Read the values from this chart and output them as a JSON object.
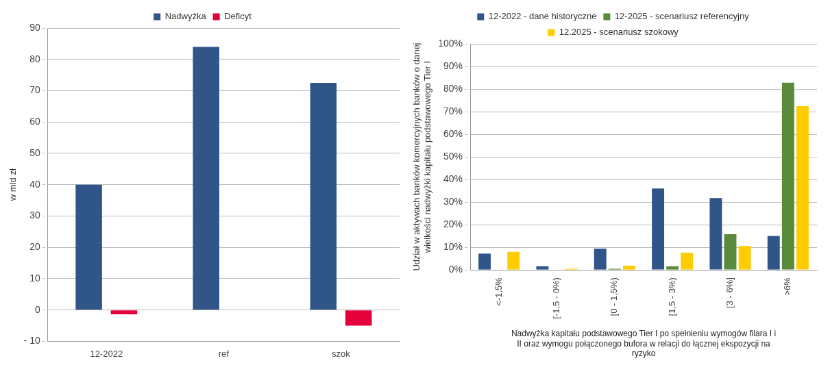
{
  "chart_data": [
    {
      "type": "bar",
      "ylabel": "w mld zł",
      "categories": [
        "12-2022",
        "ref",
        "szok"
      ],
      "series": [
        {
          "name": "Nadwyżka",
          "color": "#2f5589",
          "values": [
            40,
            84,
            72.5
          ]
        },
        {
          "name": "Deficyt",
          "color": "#e4003a",
          "values": [
            -1.4,
            null,
            -5
          ]
        }
      ],
      "ylim": [
        -10,
        90
      ],
      "yticks": [
        {
          "value": -10,
          "label": "- 10"
        },
        0,
        10,
        20,
        30,
        40,
        50,
        60,
        70,
        80,
        90
      ],
      "grid": "y",
      "legend": "top"
    },
    {
      "type": "bar",
      "ylabel": "Udział w aktywach banków komercyjnych banków o danej wielkości nadwyżki kapitału podstawowego Tier I",
      "xlabel": "Nadwyżka kapitału podstawowego Tier I po spełnieniu wymogów filara I i II oraz wymogu połączonego bufora w relacji do łącznej ekspozycji na ryzyko",
      "categories": [
        "<-1,5%",
        "[-1,5 - 0%)",
        "[0 - 1,5%)",
        "[1,5 - 3%)",
        "[3 - 6%]",
        ">6%"
      ],
      "series": [
        {
          "name": "12-2022 - dane historyczne",
          "color": "#2f5589",
          "values": [
            7.2,
            1.6,
            9.4,
            36,
            31.8,
            15
          ]
        },
        {
          "name": "12-2025 - scenariusz referencyjny",
          "color": "#5a8a3c",
          "values": [
            0,
            0,
            0.5,
            1.6,
            15.8,
            82.8
          ]
        },
        {
          "name": "12.2025 - scenariusz szokowy",
          "color": "#ffcc00",
          "values": [
            8,
            0.5,
            1.9,
            7.6,
            10.6,
            72.4
          ]
        }
      ],
      "ylim": [
        0,
        100
      ],
      "yticks": [
        {
          "value": 0,
          "label": "0%"
        },
        {
          "value": 10,
          "label": "10%"
        },
        {
          "value": 20,
          "label": "20%"
        },
        {
          "value": 30,
          "label": "30%"
        },
        {
          "value": 40,
          "label": "40%"
        },
        {
          "value": 50,
          "label": "50%"
        },
        {
          "value": 60,
          "label": "60%"
        },
        {
          "value": 70,
          "label": "70%"
        },
        {
          "value": 80,
          "label": "80%"
        },
        {
          "value": 90,
          "label": "90%"
        },
        {
          "value": 100,
          "label": "100%"
        }
      ],
      "grid": "y",
      "legend": "top"
    }
  ]
}
